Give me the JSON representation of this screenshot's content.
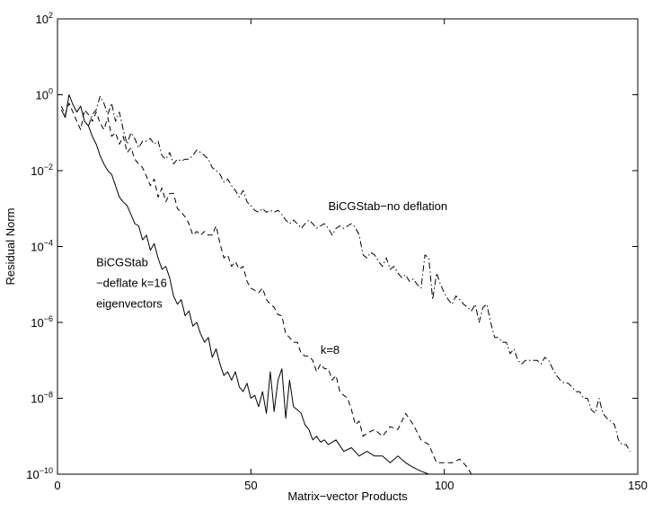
{
  "chart_data": {
    "type": "line",
    "xlabel": "Matrix−vector Products",
    "ylabel": "Residual Norm",
    "xlim": [
      0,
      150
    ],
    "ylim": [
      1e-10,
      100
    ],
    "yscale": "log",
    "grid": false,
    "x_ticks": [
      {
        "value": 0,
        "label": "0"
      },
      {
        "value": 50,
        "label": "50"
      },
      {
        "value": 100,
        "label": "100"
      },
      {
        "value": 150,
        "label": "150"
      }
    ],
    "y_ticks": [
      {
        "value": 1e-10,
        "base": "10",
        "exp": "−10"
      },
      {
        "value": 1e-08,
        "base": "10",
        "exp": "−8"
      },
      {
        "value": 1e-06,
        "base": "10",
        "exp": "−6"
      },
      {
        "value": 0.0001,
        "base": "10",
        "exp": "−4"
      },
      {
        "value": 0.01,
        "base": "10",
        "exp": "−2"
      },
      {
        "value": 1,
        "base": "10",
        "exp": "0"
      },
      {
        "value": 100,
        "base": "10",
        "exp": "2"
      }
    ],
    "annotations": [
      {
        "id": "no-deflation",
        "lines": [
          "BiCGStab−no deflation"
        ],
        "x": 70,
        "y": 0.0009
      },
      {
        "id": "k8",
        "lines": [
          "k=8"
        ],
        "x": 68,
        "y": 1.5e-07
      },
      {
        "id": "k16",
        "lines": [
          "BiCGStab",
          "−deflate k=16",
          "eigenvectors"
        ],
        "x": 10,
        "y": 3e-05
      }
    ],
    "series": [
      {
        "style": "solid",
        "x": [
          1,
          2,
          3,
          4,
          5,
          6,
          7,
          8,
          9,
          10,
          11,
          12,
          13,
          14,
          15,
          16,
          17,
          18,
          19,
          20,
          21,
          22,
          23,
          24,
          25,
          26,
          27,
          28,
          29,
          30,
          31,
          32,
          33,
          34,
          35,
          36,
          37,
          38,
          39,
          40,
          41,
          42,
          43,
          44,
          45,
          46,
          47,
          48,
          49,
          50,
          51,
          52,
          53,
          54,
          55,
          56,
          57,
          58,
          59,
          60,
          61,
          62,
          63,
          64,
          65,
          66,
          67,
          68,
          69,
          70,
          72,
          74,
          76,
          78,
          80,
          82,
          84,
          86,
          88,
          90,
          92,
          94,
          96
        ],
        "y": [
          0.4,
          0.25,
          1.0,
          0.55,
          0.35,
          0.5,
          0.2,
          0.15,
          0.08,
          0.05,
          0.025,
          0.015,
          0.01,
          0.008,
          0.004,
          0.002,
          0.0015,
          0.0012,
          0.0007,
          0.0004,
          0.00035,
          0.00015,
          0.0002,
          8e-05,
          0.00012,
          5e-05,
          2.5e-05,
          3e-05,
          1.5e-05,
          5e-06,
          3e-06,
          4e-06,
          1.5e-06,
          2e-06,
          8e-07,
          1e-06,
          5e-07,
          3e-07,
          4e-07,
          1.2e-07,
          2e-07,
          8e-08,
          4e-08,
          5e-08,
          3e-08,
          5e-08,
          2e-08,
          1.5e-08,
          2.5e-08,
          1e-08,
          1.2e-08,
          6e-09,
          1.5e-08,
          4e-09,
          5e-08,
          4.5e-09,
          3e-08,
          6e-08,
          3e-09,
          3e-08,
          6e-09,
          5e-09,
          4e-09,
          2e-09,
          1.5e-09,
          8e-10,
          1e-09,
          7e-10,
          8e-10,
          6e-10,
          8e-10,
          4e-10,
          5e-10,
          3e-10,
          4e-10,
          3e-10,
          3e-10,
          2e-10,
          3e-10,
          2e-10,
          1.5e-10,
          1.2e-10,
          1e-10
        ]
      },
      {
        "style": "dashed",
        "x": [
          1,
          2,
          3,
          4,
          5,
          6,
          7,
          8,
          9,
          10,
          11,
          12,
          13,
          14,
          15,
          16,
          17,
          18,
          19,
          20,
          21,
          22,
          23,
          24,
          25,
          26,
          27,
          28,
          29,
          30,
          31,
          32,
          33,
          34,
          35,
          36,
          37,
          38,
          39,
          40,
          41,
          42,
          43,
          44,
          45,
          46,
          47,
          48,
          49,
          50,
          51,
          52,
          53,
          54,
          55,
          56,
          57,
          58,
          59,
          60,
          61,
          62,
          63,
          64,
          65,
          66,
          67,
          68,
          69,
          70,
          71,
          72,
          73,
          74,
          75,
          76,
          77,
          78,
          79,
          80,
          82,
          84,
          86,
          88,
          90,
          92,
          94,
          96,
          98,
          100,
          102,
          104,
          106,
          107
        ],
        "y": [
          0.5,
          0.3,
          0.6,
          0.35,
          0.2,
          0.12,
          0.4,
          0.3,
          0.2,
          0.35,
          0.18,
          0.12,
          0.25,
          0.08,
          0.1,
          0.05,
          0.08,
          0.03,
          0.04,
          0.02,
          0.015,
          0.012,
          0.007,
          0.004,
          0.006,
          0.002,
          0.0035,
          0.0015,
          0.0025,
          0.0025,
          0.001,
          0.0008,
          0.0006,
          0.0004,
          0.0002,
          0.00025,
          0.0002,
          0.00025,
          0.0002,
          0.0002,
          0.00035,
          0.00012,
          5e-05,
          6e-05,
          3e-05,
          4e-05,
          2.5e-05,
          3e-05,
          1.2e-05,
          8e-06,
          7e-06,
          6e-06,
          8e-06,
          4e-06,
          3e-06,
          2.5e-06,
          1.6e-06,
          1.5e-06,
          5e-07,
          4e-07,
          3e-07,
          3e-07,
          1.5e-07,
          1.3e-07,
          1.3e-07,
          1e-07,
          5e-08,
          8e-08,
          6e-08,
          6e-08,
          3e-08,
          4e-08,
          1.5e-08,
          1.2e-08,
          1e-08,
          5e-09,
          2e-09,
          2.5e-09,
          1e-09,
          1.2e-09,
          1.5e-09,
          1e-09,
          1.8e-09,
          1.5e-09,
          4e-09,
          2e-09,
          8e-10,
          6e-10,
          2e-10,
          2e-10,
          2e-10,
          2.5e-10,
          1.5e-10,
          1e-10
        ]
      },
      {
        "style": "dashdot",
        "x": [
          8,
          9,
          10,
          11,
          12,
          13,
          14,
          15,
          16,
          17,
          18,
          19,
          20,
          21,
          22,
          23,
          24,
          25,
          26,
          27,
          28,
          29,
          30,
          31,
          32,
          33,
          34,
          35,
          36,
          37,
          38,
          39,
          40,
          41,
          42,
          43,
          44,
          45,
          46,
          47,
          48,
          49,
          50,
          51,
          52,
          53,
          54,
          55,
          56,
          57,
          58,
          59,
          60,
          61,
          62,
          63,
          64,
          65,
          66,
          67,
          68,
          69,
          70,
          71,
          72,
          73,
          74,
          75,
          76,
          77,
          78,
          79,
          80,
          81,
          82,
          83,
          84,
          85,
          86,
          87,
          88,
          89,
          90,
          91,
          92,
          93,
          94,
          95,
          96,
          97,
          98,
          99,
          100,
          101,
          102,
          103,
          104,
          105,
          106,
          107,
          108,
          109,
          110,
          111,
          112,
          113,
          114,
          115,
          116,
          117,
          118,
          119,
          120,
          121,
          122,
          123,
          124,
          125,
          126,
          127,
          128,
          129,
          130,
          131,
          132,
          133,
          134,
          135,
          136,
          137,
          138,
          139,
          140,
          141,
          142,
          143,
          144,
          145,
          146,
          147,
          148
        ],
        "y": [
          0.15,
          0.3,
          0.4,
          0.9,
          0.6,
          0.3,
          0.6,
          0.2,
          0.35,
          0.12,
          0.05,
          0.1,
          0.07,
          0.04,
          0.06,
          0.06,
          0.07,
          0.05,
          0.06,
          0.025,
          0.02,
          0.03,
          0.015,
          0.02,
          0.018,
          0.02,
          0.02,
          0.025,
          0.035,
          0.03,
          0.025,
          0.02,
          0.012,
          0.01,
          0.008,
          0.005,
          0.006,
          0.004,
          0.003,
          0.002,
          0.003,
          0.0015,
          0.0012,
          0.0009,
          0.0008,
          0.001,
          0.0008,
          0.0009,
          0.0008,
          0.0009,
          0.0007,
          0.0005,
          0.0004,
          0.0005,
          0.0004,
          0.0003,
          0.0004,
          0.0005,
          0.0004,
          0.0003,
          0.00035,
          0.0004,
          0.0003,
          0.0002,
          0.0003,
          0.00035,
          0.0003,
          0.00035,
          0.0004,
          0.00032,
          0.0002,
          6e-05,
          5e-05,
          7e-05,
          6e-05,
          4e-05,
          3e-05,
          5e-05,
          2.5e-05,
          3e-05,
          2e-05,
          1.5e-05,
          1.8e-05,
          1.2e-05,
          1.4e-05,
          1e-05,
          8e-06,
          6e-05,
          5e-05,
          4e-06,
          2e-05,
          1e-05,
          6e-06,
          4e-06,
          3e-06,
          5e-06,
          4e-06,
          3e-06,
          2.5e-06,
          2e-06,
          3e-06,
          1e-06,
          2.5e-06,
          3e-06,
          1e-06,
          4e-07,
          4e-07,
          3e-07,
          3e-07,
          1.5e-07,
          2e-07,
          1e-07,
          8e-08,
          1e-07,
          1e-07,
          1e-07,
          1e-07,
          8e-08,
          1.2e-07,
          1e-07,
          6e-08,
          4e-08,
          3e-08,
          2.5e-08,
          2.5e-08,
          2e-08,
          1.5e-08,
          1.5e-08,
          1e-08,
          1e-08,
          5e-09,
          4e-09,
          1e-08,
          4e-09,
          3e-09,
          2.5e-09,
          2e-09,
          8e-10,
          6e-10,
          6e-10,
          4e-10
        ]
      }
    ]
  }
}
